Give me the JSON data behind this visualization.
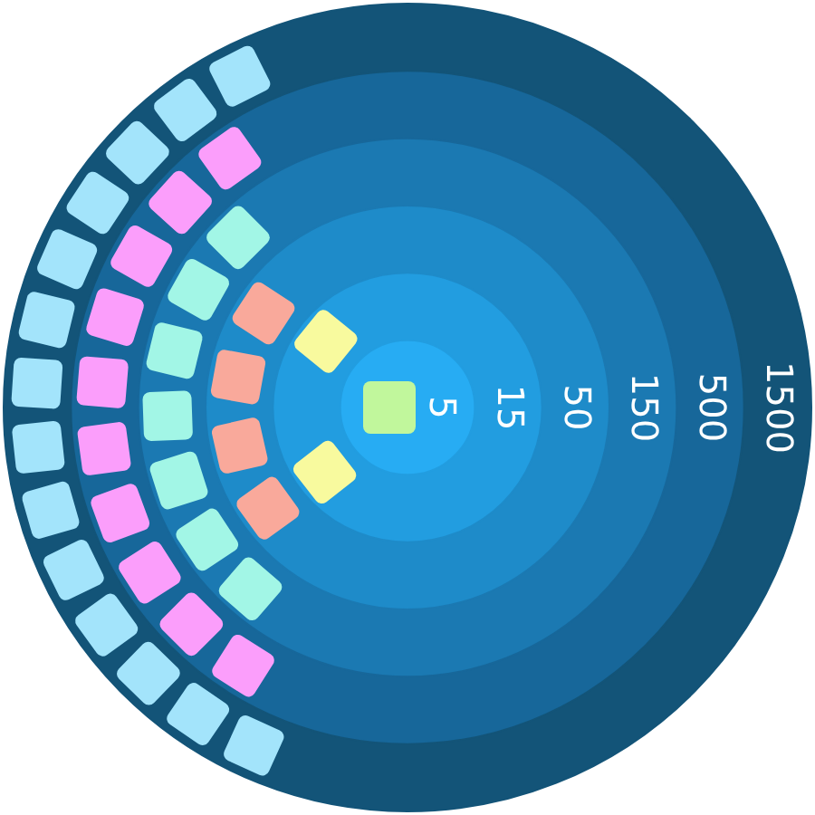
{
  "chart_data": {
    "type": "other",
    "values": [
      5,
      15,
      50,
      150,
      500,
      1500
    ],
    "colors": [
      "#27acf3",
      "#229de0",
      "#1e8bc9",
      "#1b79b2",
      "#17679a",
      "#135478"
    ],
    "data_labels": true
  }
}
